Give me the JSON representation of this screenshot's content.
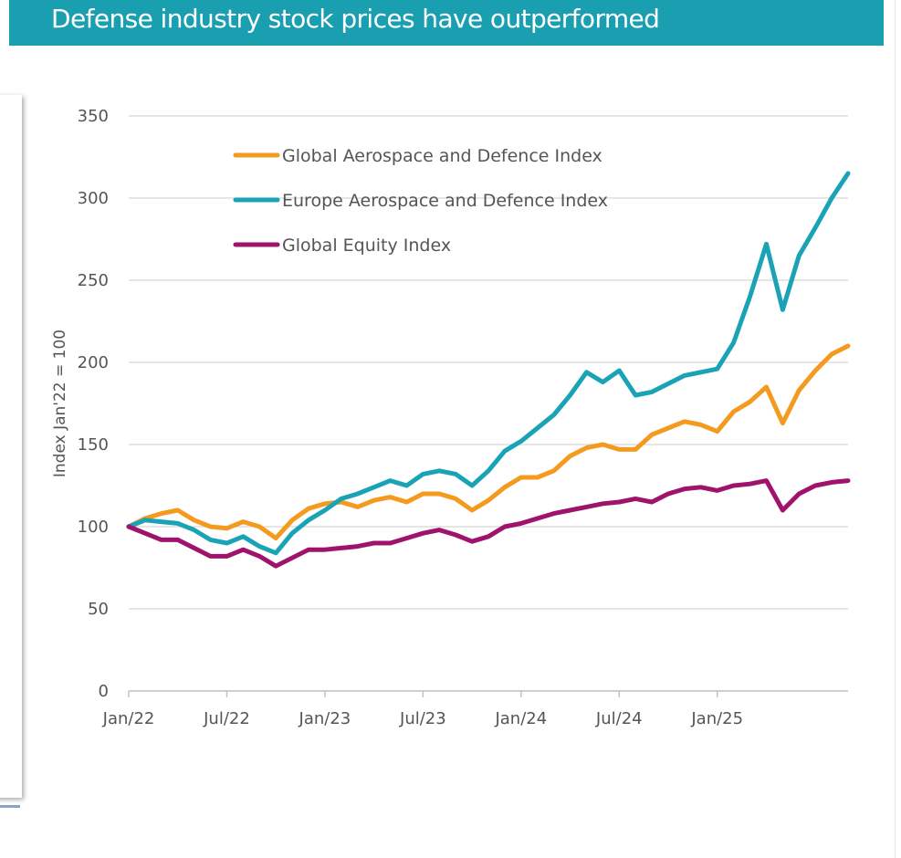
{
  "header": {
    "title": "Defense industry stock prices have outperformed",
    "bar_color": "#1a9fb1"
  },
  "chart_data": {
    "type": "line",
    "title": "",
    "xlabel": "",
    "ylabel": "Index Jan'22 = 100",
    "ylim": [
      0,
      350
    ],
    "yticks": [
      0,
      50,
      100,
      150,
      200,
      250,
      300,
      350
    ],
    "xlim": [
      "2022-01",
      "2025-09"
    ],
    "xticks": [
      "Jan/22",
      "Jul/22",
      "Jan/23",
      "Jul/23",
      "Jan/24",
      "Jul/24",
      "Jan/25"
    ],
    "grid": true,
    "legend_position": "top-left",
    "x": [
      "2022-01",
      "2022-02",
      "2022-03",
      "2022-04",
      "2022-05",
      "2022-06",
      "2022-07",
      "2022-08",
      "2022-09",
      "2022-10",
      "2022-11",
      "2022-12",
      "2023-01",
      "2023-02",
      "2023-03",
      "2023-04",
      "2023-05",
      "2023-06",
      "2023-07",
      "2023-08",
      "2023-09",
      "2023-10",
      "2023-11",
      "2023-12",
      "2024-01",
      "2024-02",
      "2024-03",
      "2024-04",
      "2024-05",
      "2024-06",
      "2024-07",
      "2024-08",
      "2024-09",
      "2024-10",
      "2024-11",
      "2024-12",
      "2025-01",
      "2025-02",
      "2025-03",
      "2025-04",
      "2025-05",
      "2025-06",
      "2025-07",
      "2025-08",
      "2025-09"
    ],
    "series": [
      {
        "name": "Global Aerospace and Defence Index",
        "color": "#f39a1f",
        "values": [
          100,
          105,
          108,
          110,
          104,
          100,
          99,
          103,
          100,
          93,
          104,
          111,
          114,
          115,
          112,
          116,
          118,
          115,
          120,
          120,
          117,
          110,
          116,
          124,
          130,
          130,
          134,
          143,
          148,
          150,
          147,
          147,
          156,
          160,
          164,
          162,
          158,
          170,
          176,
          185,
          163,
          183,
          195,
          205,
          210
        ]
      },
      {
        "name": "Europe Aerospace and Defence Index",
        "color": "#1aa3b5",
        "values": [
          100,
          104,
          103,
          102,
          98,
          92,
          90,
          94,
          88,
          84,
          96,
          104,
          110,
          117,
          120,
          124,
          128,
          125,
          132,
          134,
          132,
          125,
          134,
          146,
          152,
          160,
          168,
          180,
          194,
          188,
          195,
          180,
          182,
          187,
          192,
          194,
          196,
          212,
          240,
          272,
          232,
          265,
          282,
          300,
          315
        ]
      },
      {
        "name": "Global Equity Index",
        "color": "#a0136c",
        "values": [
          100,
          96,
          92,
          92,
          87,
          82,
          82,
          86,
          82,
          76,
          81,
          86,
          86,
          87,
          88,
          90,
          90,
          93,
          96,
          98,
          95,
          91,
          94,
          100,
          102,
          105,
          108,
          110,
          112,
          114,
          115,
          117,
          115,
          120,
          123,
          124,
          122,
          125,
          126,
          128,
          110,
          120,
          125,
          127,
          128
        ]
      }
    ]
  }
}
